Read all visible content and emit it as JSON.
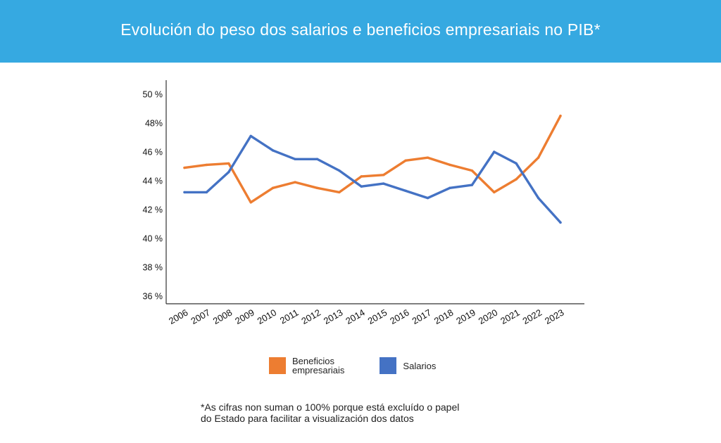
{
  "header": {
    "title": "Evolución do peso dos salarios e beneficios empresariais no PIB*"
  },
  "chart_data": {
    "type": "line",
    "title": "Evolución do peso dos salarios e beneficios empresariais no PIB*",
    "xlabel": "",
    "ylabel": "",
    "categories": [
      "2006",
      "2007",
      "2008",
      "2009",
      "2010",
      "2011",
      "2012",
      "2013",
      "2014",
      "2015",
      "2016",
      "2017",
      "2018",
      "2019",
      "2020",
      "2021",
      "2022",
      "2023"
    ],
    "ylim": [
      36,
      50
    ],
    "y_ticks": [
      {
        "value": 50,
        "label": "50 %"
      },
      {
        "value": 48,
        "label": "48%"
      },
      {
        "value": 46,
        "label": "46 %"
      },
      {
        "value": 44,
        "label": "44 %"
      },
      {
        "value": 42,
        "label": "42 %"
      },
      {
        "value": 40,
        "label": "40 %"
      },
      {
        "value": 38,
        "label": "38 %"
      },
      {
        "value": 36,
        "label": "36 %"
      }
    ],
    "grid": false,
    "legend_position": "bottom",
    "series": [
      {
        "name": "Beneficios empresariais",
        "color": "#ed7d31",
        "values": [
          44.9,
          45.1,
          45.2,
          42.5,
          43.5,
          43.9,
          43.5,
          43.2,
          44.3,
          44.4,
          45.4,
          45.6,
          45.1,
          44.7,
          43.2,
          44.1,
          45.6,
          48.5
        ]
      },
      {
        "name": "Salarios",
        "color": "#4472c4",
        "values": [
          43.2,
          43.2,
          44.6,
          47.1,
          46.1,
          45.5,
          45.5,
          44.7,
          43.6,
          43.8,
          43.3,
          42.8,
          43.5,
          43.7,
          46.0,
          45.2,
          42.8,
          41.1
        ]
      }
    ]
  },
  "legend": {
    "items": [
      {
        "label_line1": "Beneficios",
        "label_line2": "empresariais",
        "color": "#ed7d31"
      },
      {
        "label": "Salarios",
        "color": "#4472c4"
      }
    ]
  },
  "footnote": {
    "line1": "*As cifras non suman o 100% porque está excluído o papel",
    "line2": "do Estado para facilitar a visualización dos datos"
  },
  "colors": {
    "banner": "#36a9e1",
    "beneficios": "#ed7d31",
    "salarios": "#4472c4"
  }
}
